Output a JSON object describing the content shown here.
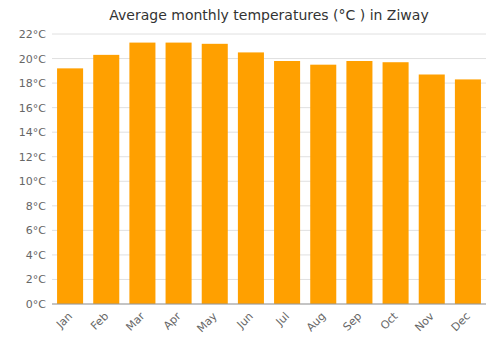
{
  "chart_data": {
    "type": "bar",
    "title": "Average monthly temperatures (°C ) in Ziway",
    "categories": [
      "Jan",
      "Feb",
      "Mar",
      "Apr",
      "May",
      "Jun",
      "Jul",
      "Aug",
      "Sep",
      "Oct",
      "Nov",
      "Dec"
    ],
    "values": [
      19.2,
      20.3,
      21.3,
      21.3,
      21.2,
      20.5,
      19.8,
      19.5,
      19.8,
      19.7,
      18.7,
      18.3
    ],
    "color": "#FFA000",
    "ylim": [
      0,
      22
    ],
    "yticks": [
      {
        "value": 0,
        "label": "0°C"
      },
      {
        "value": 2,
        "label": "2°C"
      },
      {
        "value": 4,
        "label": "4°C"
      },
      {
        "value": 6,
        "label": "6°C"
      },
      {
        "value": 8,
        "label": "8°C"
      },
      {
        "value": 10,
        "label": "10°C"
      },
      {
        "value": 12,
        "label": "12°C"
      },
      {
        "value": 14,
        "label": "14°C"
      },
      {
        "value": 16,
        "label": "16°C"
      },
      {
        "value": 18,
        "label": "18°C"
      },
      {
        "value": 20,
        "label": "20°C"
      },
      {
        "value": 22,
        "label": "22°C"
      }
    ],
    "grid": true
  }
}
